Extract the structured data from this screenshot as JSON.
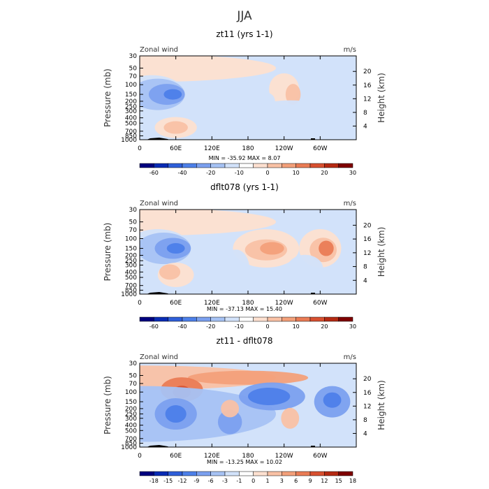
{
  "figure": {
    "title": "JJA"
  },
  "colors": {
    "frame": "#000000",
    "zero_fill": "#ffffff",
    "land": "#000000"
  },
  "chart_data": [
    {
      "type": "heatmap",
      "title": "zt11 (yrs 1-1)",
      "left_label": "Zonal wind",
      "units": "m/s",
      "ylabel": "Pressure (mb)",
      "y2label": "Height (km)",
      "xticks": [
        "0",
        "60E",
        "120E",
        "180",
        "120W",
        "60W"
      ],
      "pressure_ticks": [
        "30",
        "50",
        "70",
        "100",
        "150",
        "200",
        "250",
        "300",
        "400",
        "500",
        "700",
        "850",
        "1000"
      ],
      "height_ticks": [
        "20",
        "16",
        "12",
        "8",
        "4"
      ],
      "min_max_text": "MIN = -35.92   MAX =   8.07",
      "colorbar": {
        "labels": [
          "-60",
          "-40",
          "-20",
          "-10",
          "0",
          "10",
          "20",
          "30"
        ],
        "colors": [
          "#00007f",
          "#0a2cb4",
          "#2f5fd9",
          "#4d80e9",
          "#7ba0ef",
          "#a6c2f4",
          "#d2e2fa",
          "#ffffff",
          "#fde0d0",
          "#f9c1a5",
          "#f3a07a",
          "#ea7c55",
          "#d85030",
          "#b52a13",
          "#7f0000"
        ]
      },
      "regions": [
        {
          "lon": 0,
          "p": 50,
          "w": 360,
          "h": 40,
          "v": 4
        },
        {
          "lon": 20,
          "p": 150,
          "w": 110,
          "h": 55,
          "v": -6
        },
        {
          "lon": 30,
          "p": 150,
          "w": 90,
          "h": 45,
          "v": -10
        },
        {
          "lon": 45,
          "p": 150,
          "w": 60,
          "h": 30,
          "v": -20
        },
        {
          "lon": 55,
          "p": 150,
          "w": 30,
          "h": 15,
          "v": -30
        },
        {
          "lon": 60,
          "p": 600,
          "w": 70,
          "h": 30,
          "v": 4
        },
        {
          "lon": 60,
          "p": 600,
          "w": 40,
          "h": 18,
          "v": 6
        },
        {
          "lon": 240,
          "p": 120,
          "w": 50,
          "h": 45,
          "v": 4
        },
        {
          "lon": 255,
          "p": 150,
          "w": 25,
          "h": 30,
          "v": 8
        },
        {
          "lon": 210,
          "p": 200,
          "w": 30,
          "h": 25,
          "v": -6
        },
        {
          "lon": 250,
          "p": 400,
          "w": 160,
          "h": 50,
          "v": -3
        }
      ]
    },
    {
      "type": "heatmap",
      "title": "dflt078 (yrs 1-1)",
      "left_label": "Zonal wind",
      "units": "m/s",
      "ylabel": "Pressure (mb)",
      "y2label": "Height (km)",
      "xticks": [
        "0",
        "60E",
        "120E",
        "180",
        "120W",
        "60W"
      ],
      "pressure_ticks": [
        "30",
        "50",
        "70",
        "100",
        "150",
        "200",
        "250",
        "300",
        "400",
        "500",
        "700",
        "850",
        "1000"
      ],
      "height_ticks": [
        "20",
        "16",
        "12",
        "8",
        "4"
      ],
      "min_max_text": "MIN = -37.13   MAX =  15.40",
      "colorbar": {
        "labels": [
          "-60",
          "-40",
          "-20",
          "-10",
          "0",
          "10",
          "20",
          "30"
        ],
        "colors": [
          "#00007f",
          "#0a2cb4",
          "#2f5fd9",
          "#4d80e9",
          "#7ba0ef",
          "#a6c2f4",
          "#d2e2fa",
          "#ffffff",
          "#fde0d0",
          "#f9c1a5",
          "#f3a07a",
          "#ea7c55",
          "#d85030",
          "#b52a13",
          "#7f0000"
        ]
      },
      "regions": [
        {
          "lon": 0,
          "p": 50,
          "w": 360,
          "h": 40,
          "v": 4
        },
        {
          "lon": 30,
          "p": 150,
          "w": 110,
          "h": 55,
          "v": -6
        },
        {
          "lon": 40,
          "p": 150,
          "w": 90,
          "h": 45,
          "v": -10
        },
        {
          "lon": 55,
          "p": 150,
          "w": 60,
          "h": 30,
          "v": -20
        },
        {
          "lon": 60,
          "p": 150,
          "w": 30,
          "h": 15,
          "v": -30
        },
        {
          "lon": 60,
          "p": 450,
          "w": 60,
          "h": 35,
          "v": 4
        },
        {
          "lon": 50,
          "p": 400,
          "w": 35,
          "h": 22,
          "v": 6
        },
        {
          "lon": 210,
          "p": 150,
          "w": 110,
          "h": 55,
          "v": 4
        },
        {
          "lon": 210,
          "p": 160,
          "w": 70,
          "h": 30,
          "v": 8
        },
        {
          "lon": 220,
          "p": 150,
          "w": 40,
          "h": 18,
          "v": 12
        },
        {
          "lon": 300,
          "p": 150,
          "w": 70,
          "h": 55,
          "v": 4
        },
        {
          "lon": 305,
          "p": 160,
          "w": 45,
          "h": 35,
          "v": 8
        },
        {
          "lon": 310,
          "p": 150,
          "w": 25,
          "h": 22,
          "v": 15
        },
        {
          "lon": 160,
          "p": 350,
          "w": 45,
          "h": 55,
          "v": -6
        },
        {
          "lon": 275,
          "p": 350,
          "w": 60,
          "h": 40,
          "v": -6
        }
      ]
    },
    {
      "type": "heatmap",
      "title": "zt11 - dflt078",
      "left_label": "Zonal wind",
      "units": "m/s",
      "ylabel": "Pressure (mb)",
      "y2label": "Height (km)",
      "xticks": [
        "0",
        "60E",
        "120E",
        "180",
        "120W",
        "60W"
      ],
      "pressure_ticks": [
        "30",
        "50",
        "70",
        "100",
        "150",
        "200",
        "250",
        "300",
        "400",
        "500",
        "700",
        "850",
        "1000"
      ],
      "height_ticks": [
        "20",
        "16",
        "12",
        "8",
        "4"
      ],
      "min_max_text": "MIN = -13.25   MAX =  10.02",
      "colorbar": {
        "labels": [
          "-18",
          "-15",
          "-12",
          "-9",
          "-6",
          "-3",
          "-1",
          "0",
          "1",
          "3",
          "6",
          "9",
          "12",
          "15",
          "18"
        ],
        "colors": [
          "#00007f",
          "#0a2cb4",
          "#2f5fd9",
          "#4d80e9",
          "#7ba0ef",
          "#a6c2f4",
          "#d2e2fa",
          "#ffffff",
          "#fde0d0",
          "#f9c1a5",
          "#f3a07a",
          "#ea7c55",
          "#d85030",
          "#b52a13",
          "#7f0000"
        ]
      },
      "regions": [
        {
          "lon": 0,
          "p": 55,
          "w": 360,
          "h": 35,
          "v": 4
        },
        {
          "lon": 180,
          "p": 55,
          "w": 200,
          "h": 20,
          "v": 6
        },
        {
          "lon": 70,
          "p": 90,
          "w": 70,
          "h": 35,
          "v": 8
        },
        {
          "lon": 70,
          "p": 100,
          "w": 30,
          "h": 18,
          "v": 12
        },
        {
          "lon": 0,
          "p": 250,
          "w": 360,
          "h": 80,
          "v": -3
        },
        {
          "lon": 220,
          "p": 120,
          "w": 110,
          "h": 40,
          "v": -6
        },
        {
          "lon": 215,
          "p": 120,
          "w": 70,
          "h": 25,
          "v": -10
        },
        {
          "lon": 320,
          "p": 150,
          "w": 60,
          "h": 45,
          "v": -6
        },
        {
          "lon": 320,
          "p": 140,
          "w": 30,
          "h": 22,
          "v": -10
        },
        {
          "lon": 60,
          "p": 250,
          "w": 70,
          "h": 45,
          "v": -6
        },
        {
          "lon": 60,
          "p": 250,
          "w": 35,
          "h": 25,
          "v": -10
        },
        {
          "lon": 150,
          "p": 350,
          "w": 40,
          "h": 35,
          "v": -6
        },
        {
          "lon": 150,
          "p": 200,
          "w": 30,
          "h": 25,
          "v": 4
        },
        {
          "lon": 250,
          "p": 300,
          "w": 30,
          "h": 30,
          "v": 4
        }
      ]
    }
  ]
}
